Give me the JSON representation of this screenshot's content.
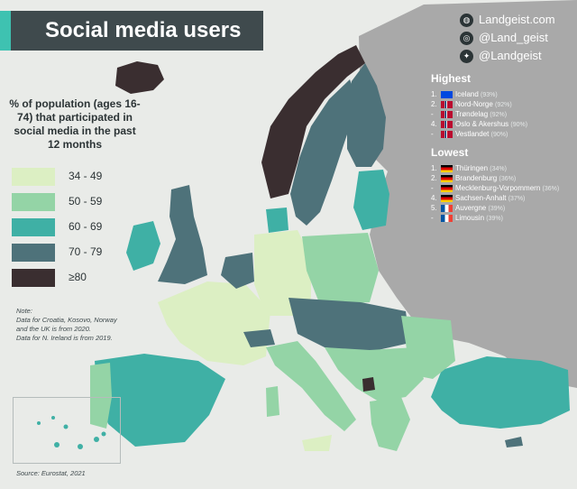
{
  "title": "Social media users",
  "brand": {
    "website": "Landgeist.com",
    "instagram": "@Land_geist",
    "twitter": "@Landgeist",
    "icons": [
      "globe-icon",
      "instagram-icon",
      "twitter-icon"
    ]
  },
  "legend": {
    "title": "% of population (ages 16-74) that participated in social media in the past 12 months",
    "items": [
      {
        "label": "34 - 49",
        "color": "#dcefc3"
      },
      {
        "label": "50 - 59",
        "color": "#94d4a6"
      },
      {
        "label": "60 - 69",
        "color": "#3fb0a5"
      },
      {
        "label": "70 - 79",
        "color": "#4e727a"
      },
      {
        "label": "≥80",
        "color": "#3a2e30"
      }
    ]
  },
  "note": [
    "Note:",
    "Data for Croatia, Kosovo, Norway",
    "and the UK is from 2020.",
    "Data for N. Ireland is from 2019."
  ],
  "source": "Source: Eurostat, 2021",
  "highest": {
    "heading": "Highest",
    "rows": [
      {
        "rank": "1.",
        "name": "Iceland",
        "value": "(93%)",
        "flag": "iceland"
      },
      {
        "rank": "2.",
        "name": "Nord-Norge",
        "value": "(92%)",
        "flag": "norway"
      },
      {
        "rank": "-",
        "name": "Trøndelag",
        "value": "(92%)",
        "flag": "norway"
      },
      {
        "rank": "4.",
        "name": "Oslo & Akershus",
        "value": "(90%)",
        "flag": "norway"
      },
      {
        "rank": "-",
        "name": "Vestlandet",
        "value": "(90%)",
        "flag": "norway"
      }
    ]
  },
  "lowest": {
    "heading": "Lowest",
    "rows": [
      {
        "rank": "1.",
        "name": "Thüringen",
        "value": "(34%)",
        "flag": "germany"
      },
      {
        "rank": "2.",
        "name": "Brandenburg",
        "value": "(36%)",
        "flag": "germany"
      },
      {
        "rank": "-",
        "name": "Mecklenburg-Vorpommern",
        "value": "(36%)",
        "flag": "germany"
      },
      {
        "rank": "4.",
        "name": "Sachsen-Anhalt",
        "value": "(37%)",
        "flag": "germany"
      },
      {
        "rank": "5.",
        "name": "Auvergne",
        "value": "(39%)",
        "flag": "france"
      },
      {
        "rank": "-",
        "name": "Limousin",
        "value": "(39%)",
        "flag": "france"
      }
    ]
  },
  "colors": {
    "background": "#e9ebe8",
    "no_data": "#a9a9a9",
    "title_bar": "#3f4a4d",
    "title_accent": "#3ec2b1"
  }
}
